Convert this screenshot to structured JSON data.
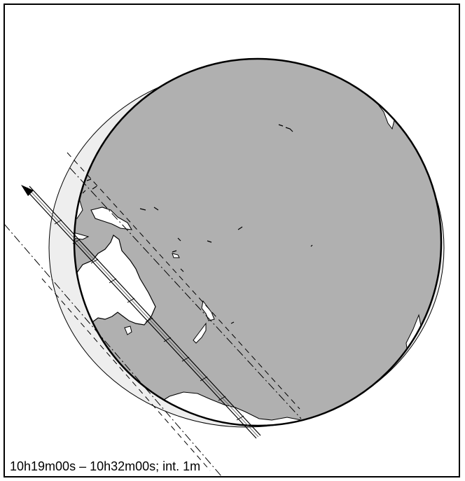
{
  "caption": "10h19m00s – 10h32m00s; int.  1m",
  "colors": {
    "ocean": "#b0b0b0",
    "land": "#ffffff",
    "outline": "#000000",
    "background": "#ffffff",
    "night_limb": "#eeeeee"
  },
  "track": {
    "interval_label": "1m",
    "start_time": "10h19m00s",
    "end_time": "10h32m00s",
    "direction": "northwest"
  }
}
